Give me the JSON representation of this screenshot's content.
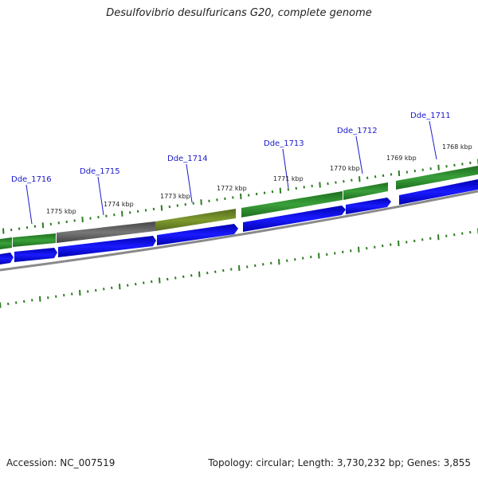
{
  "title": "Desulfovibrio desulfuricans G20, complete genome",
  "footer": {
    "accession": "Accession: NC_007519",
    "summary": "Topology: circular; Length: 3,730,232 bp; Genes: 3,855"
  },
  "colors": {
    "gene_label": "#1a1acc",
    "cds_green": "#2e8b2e",
    "cds_blue": "#0b0bdd",
    "cds_gray": "#5a5a5a",
    "cds_olive": "#6b8e23",
    "backbone": "#888888",
    "tick": "#2e7d22"
  },
  "gene_labels": [
    "Dde_1716",
    "Dde_1715",
    "Dde_1714",
    "Dde_1713",
    "Dde_1712",
    "Dde_1711"
  ],
  "kbp_labels": [
    "1775 kbp",
    "1774 kbp",
    "1773 kbp",
    "1772 kbp",
    "1771 kbp",
    "1770 kbp",
    "1769 kbp",
    "1768 kbp"
  ]
}
